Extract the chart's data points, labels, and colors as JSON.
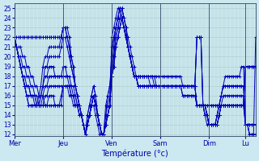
{
  "xlabel": "Température (°c)",
  "bg_color": "#cce8f0",
  "grid_color": "#aacccc",
  "line_color": "#0000bb",
  "ylim": [
    11.8,
    25.5
  ],
  "ytick_min": 12,
  "ytick_max": 25,
  "day_labels": [
    "Mer",
    "Jeu",
    "Ven",
    "Sam",
    "Dim",
    "Lu"
  ],
  "day_positions": [
    0,
    24,
    48,
    72,
    96,
    114
  ],
  "num_points": 120,
  "series": [
    [
      22,
      22,
      22,
      22,
      22,
      22,
      22,
      22,
      22,
      22,
      22,
      22,
      22,
      22,
      22,
      22,
      22,
      22,
      22,
      22,
      22,
      22,
      22,
      22,
      23,
      23,
      23,
      22,
      20,
      19,
      17,
      16,
      15,
      14,
      13,
      12,
      13,
      14,
      15,
      15,
      14,
      13,
      12,
      12,
      12,
      13,
      14,
      15,
      22,
      23,
      24,
      25,
      25,
      24,
      23,
      22,
      21,
      20,
      19,
      18,
      18,
      17,
      17,
      17,
      17,
      17,
      17,
      17,
      17,
      17,
      17,
      17,
      17,
      17,
      17,
      17,
      17,
      17,
      17,
      17,
      17,
      17,
      17,
      17,
      17,
      17,
      17,
      17,
      17,
      17,
      22,
      22,
      22,
      15,
      15,
      15,
      15,
      15,
      15,
      15,
      15,
      15,
      15,
      15,
      15,
      15,
      15,
      15,
      15,
      15,
      15,
      15,
      15,
      15,
      19,
      19,
      19,
      19,
      19,
      19
    ],
    [
      22,
      22,
      22,
      22,
      22,
      22,
      22,
      22,
      22,
      22,
      22,
      22,
      22,
      22,
      22,
      22,
      22,
      22,
      22,
      22,
      22,
      22,
      22,
      22,
      23,
      23,
      22,
      21,
      19,
      18,
      17,
      16,
      15,
      14,
      13,
      12,
      13,
      14,
      15,
      16,
      15,
      14,
      13,
      12,
      12,
      13,
      14,
      15,
      21,
      22,
      23,
      24,
      25,
      24,
      23,
      22,
      21,
      20,
      19,
      18,
      18,
      17,
      17,
      17,
      17,
      17,
      17,
      17,
      17,
      17,
      17,
      17,
      17,
      17,
      17,
      17,
      17,
      17,
      17,
      17,
      17,
      17,
      17,
      17,
      17,
      17,
      17,
      17,
      17,
      17,
      22,
      22,
      22,
      15,
      15,
      15,
      15,
      15,
      15,
      15,
      15,
      15,
      15,
      15,
      15,
      15,
      15,
      15,
      15,
      15,
      15,
      15,
      15,
      15,
      19,
      19,
      19,
      19,
      19,
      19
    ],
    [
      22,
      21,
      21,
      21,
      20,
      20,
      19,
      19,
      18,
      18,
      17,
      17,
      16,
      16,
      16,
      15,
      15,
      15,
      15,
      15,
      15,
      15,
      15,
      15,
      17,
      17,
      17,
      17,
      16,
      16,
      15,
      15,
      15,
      14,
      13,
      12,
      13,
      14,
      15,
      16,
      15,
      14,
      13,
      12,
      12,
      13,
      14,
      15,
      19,
      20,
      22,
      23,
      24,
      24,
      23,
      22,
      21,
      20,
      19,
      18,
      18,
      17,
      17,
      17,
      17,
      17,
      17,
      17,
      17,
      17,
      17,
      17,
      17,
      17,
      17,
      17,
      17,
      17,
      17,
      17,
      17,
      17,
      17,
      17,
      17,
      17,
      17,
      17,
      17,
      17,
      22,
      22,
      22,
      15,
      15,
      14,
      13,
      13,
      13,
      13,
      13,
      14,
      15,
      15,
      15,
      15,
      15,
      15,
      15,
      15,
      15,
      15,
      15,
      15,
      19,
      19,
      19,
      19,
      19,
      19
    ],
    [
      22,
      21,
      20,
      20,
      19,
      19,
      18,
      18,
      17,
      17,
      16,
      16,
      15,
      15,
      15,
      15,
      15,
      16,
      16,
      16,
      15,
      15,
      15,
      16,
      17,
      17,
      17,
      16,
      16,
      15,
      15,
      15,
      14,
      14,
      13,
      12,
      13,
      14,
      15,
      16,
      15,
      14,
      13,
      12,
      12,
      13,
      14,
      15,
      18,
      19,
      21,
      22,
      23,
      24,
      23,
      22,
      21,
      20,
      19,
      18,
      18,
      17,
      17,
      17,
      17,
      17,
      17,
      17,
      17,
      17,
      17,
      17,
      17,
      17,
      17,
      17,
      17,
      17,
      17,
      17,
      17,
      17,
      17,
      16,
      16,
      16,
      16,
      16,
      16,
      16,
      15,
      15,
      15,
      15,
      15,
      14,
      13,
      13,
      13,
      13,
      13,
      14,
      15,
      15,
      15,
      15,
      15,
      15,
      15,
      15,
      15,
      15,
      15,
      15,
      13,
      13,
      13,
      13,
      13,
      13
    ],
    [
      22,
      21,
      20,
      19,
      18,
      18,
      17,
      17,
      16,
      16,
      16,
      15,
      15,
      15,
      15,
      16,
      16,
      17,
      17,
      17,
      17,
      17,
      17,
      17,
      17,
      17,
      17,
      17,
      16,
      16,
      15,
      15,
      14,
      14,
      13,
      12,
      13,
      14,
      15,
      16,
      15,
      14,
      13,
      12,
      12,
      13,
      14,
      15,
      18,
      19,
      21,
      22,
      23,
      24,
      23,
      22,
      21,
      20,
      19,
      18,
      18,
      17,
      17,
      17,
      17,
      17,
      17,
      17,
      17,
      17,
      17,
      17,
      17,
      17,
      17,
      17,
      17,
      17,
      17,
      17,
      17,
      17,
      17,
      16,
      16,
      16,
      16,
      16,
      16,
      16,
      15,
      15,
      15,
      15,
      15,
      14,
      13,
      13,
      13,
      13,
      13,
      14,
      15,
      15,
      15,
      15,
      15,
      15,
      15,
      15,
      15,
      15,
      15,
      15,
      13,
      13,
      13,
      13,
      13,
      13
    ],
    [
      22,
      21,
      20,
      19,
      18,
      17,
      17,
      17,
      16,
      16,
      16,
      15,
      15,
      15,
      16,
      17,
      17,
      18,
      18,
      18,
      18,
      18,
      18,
      18,
      18,
      18,
      18,
      17,
      17,
      16,
      16,
      15,
      14,
      14,
      13,
      12,
      13,
      14,
      15,
      16,
      15,
      14,
      13,
      12,
      12,
      13,
      14,
      15,
      18,
      19,
      21,
      22,
      23,
      24,
      23,
      22,
      21,
      20,
      19,
      18,
      18,
      18,
      18,
      18,
      18,
      18,
      18,
      18,
      18,
      18,
      18,
      18,
      18,
      18,
      18,
      18,
      18,
      18,
      18,
      18,
      18,
      18,
      18,
      17,
      17,
      17,
      17,
      17,
      17,
      17,
      15,
      15,
      15,
      15,
      15,
      14,
      13,
      13,
      13,
      13,
      13,
      14,
      15,
      16,
      16,
      16,
      16,
      16,
      16,
      16,
      16,
      16,
      16,
      16,
      13,
      13,
      13,
      13,
      13,
      13
    ],
    [
      22,
      21,
      20,
      19,
      18,
      17,
      16,
      16,
      16,
      16,
      15,
      15,
      15,
      16,
      17,
      18,
      18,
      19,
      19,
      19,
      18,
      18,
      18,
      18,
      19,
      19,
      18,
      18,
      17,
      17,
      16,
      15,
      15,
      14,
      13,
      12,
      13,
      14,
      15,
      16,
      15,
      14,
      13,
      12,
      12,
      14,
      15,
      16,
      18,
      20,
      22,
      23,
      24,
      25,
      24,
      23,
      22,
      21,
      20,
      19,
      18,
      18,
      18,
      18,
      18,
      18,
      18,
      18,
      18,
      18,
      17,
      17,
      17,
      17,
      17,
      17,
      17,
      17,
      17,
      17,
      17,
      17,
      17,
      17,
      17,
      17,
      17,
      17,
      17,
      17,
      15,
      15,
      15,
      15,
      14,
      14,
      13,
      13,
      13,
      13,
      14,
      15,
      16,
      17,
      17,
      17,
      17,
      17,
      17,
      17,
      17,
      17,
      17,
      17,
      13,
      13,
      12,
      12,
      12,
      12
    ],
    [
      22,
      21,
      20,
      19,
      18,
      17,
      16,
      15,
      15,
      15,
      15,
      15,
      15,
      16,
      17,
      19,
      19,
      20,
      20,
      20,
      20,
      20,
      20,
      21,
      22,
      22,
      21,
      20,
      19,
      18,
      17,
      16,
      15,
      14,
      13,
      12,
      14,
      15,
      16,
      17,
      16,
      14,
      13,
      12,
      12,
      14,
      16,
      17,
      19,
      21,
      23,
      24,
      25,
      25,
      24,
      23,
      21,
      20,
      19,
      18,
      18,
      18,
      18,
      18,
      18,
      18,
      18,
      18,
      18,
      17,
      17,
      17,
      17,
      17,
      17,
      17,
      17,
      17,
      17,
      17,
      17,
      17,
      17,
      17,
      17,
      17,
      17,
      17,
      17,
      17,
      15,
      15,
      15,
      15,
      14,
      14,
      13,
      13,
      13,
      13,
      14,
      15,
      16,
      17,
      17,
      17,
      17,
      17,
      17,
      17,
      17,
      17,
      17,
      17,
      13,
      13,
      12,
      12,
      12,
      12
    ],
    [
      22,
      21,
      20,
      19,
      18,
      17,
      16,
      15,
      15,
      15,
      15,
      15,
      16,
      17,
      19,
      20,
      20,
      21,
      21,
      21,
      21,
      21,
      21,
      22,
      23,
      23,
      22,
      21,
      20,
      19,
      17,
      16,
      15,
      14,
      13,
      12,
      14,
      15,
      16,
      17,
      16,
      14,
      13,
      12,
      12,
      15,
      16,
      17,
      20,
      22,
      23,
      24,
      25,
      25,
      24,
      23,
      21,
      20,
      19,
      18,
      18,
      18,
      18,
      18,
      18,
      18,
      18,
      17,
      17,
      17,
      17,
      17,
      17,
      17,
      17,
      17,
      17,
      17,
      17,
      17,
      17,
      17,
      17,
      17,
      17,
      17,
      17,
      17,
      17,
      17,
      15,
      15,
      15,
      15,
      14,
      13,
      13,
      13,
      13,
      13,
      14,
      15,
      16,
      17,
      18,
      18,
      18,
      18,
      18,
      18,
      18,
      18,
      19,
      19,
      13,
      13,
      12,
      12,
      12,
      22
    ]
  ]
}
